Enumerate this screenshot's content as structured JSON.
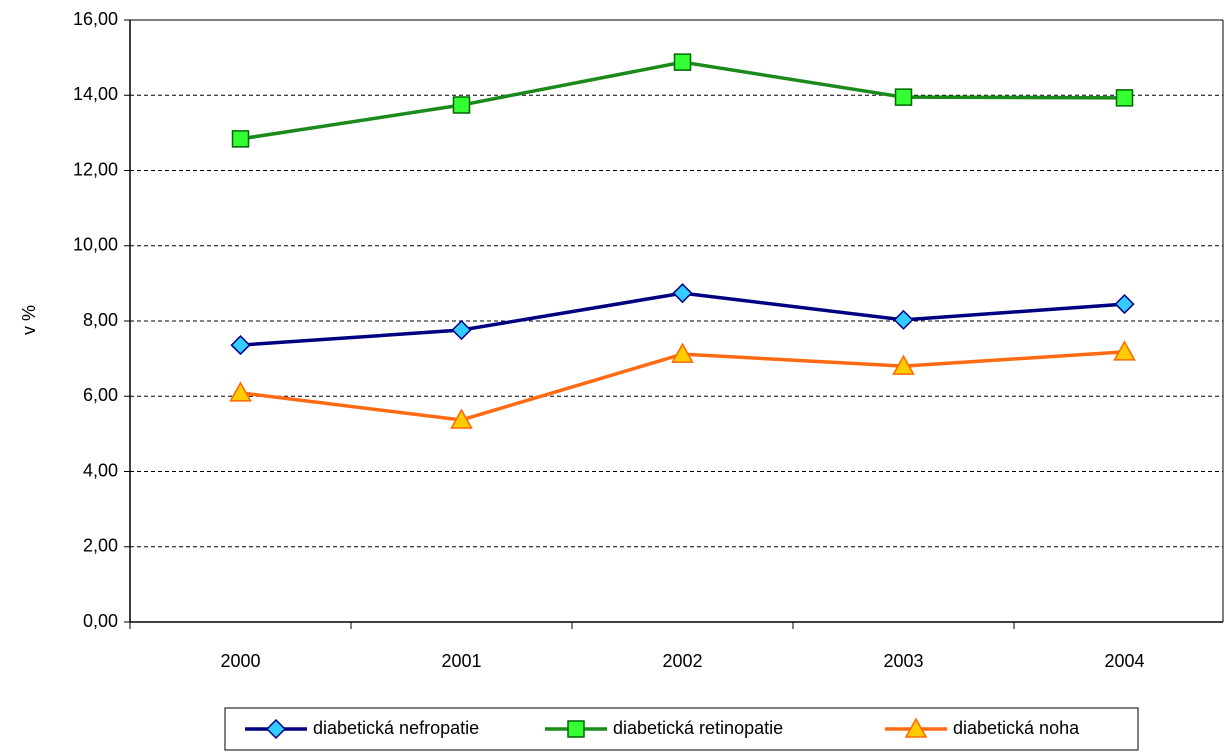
{
  "chart_data": {
    "type": "line",
    "y_label": "v %",
    "categories": [
      "2000",
      "2001",
      "2002",
      "2003",
      "2004"
    ],
    "series": [
      {
        "name": "diabetická nefropatie",
        "color": "#000080",
        "marker": "diamond",
        "marker_color": "#33ccff",
        "values": [
          7.36,
          7.76,
          8.74,
          8.03,
          8.45
        ]
      },
      {
        "name": "diabetická retinopatie",
        "color": "#1a8a1a",
        "marker": "square",
        "marker_color": "#33ff33",
        "values": [
          12.84,
          13.74,
          14.88,
          13.95,
          13.93
        ]
      },
      {
        "name": "diabetická noha",
        "color": "#ff6a13",
        "marker": "triangle",
        "marker_color": "#ffcc00",
        "values": [
          6.09,
          5.37,
          7.12,
          6.8,
          7.18
        ]
      }
    ],
    "ylim": [
      0,
      16
    ],
    "yticks": [
      {
        "value": 0,
        "label": "0,00"
      },
      {
        "value": 2,
        "label": "2,00"
      },
      {
        "value": 4,
        "label": "4,00"
      },
      {
        "value": 6,
        "label": "6,00"
      },
      {
        "value": 8,
        "label": "8,00"
      },
      {
        "value": 10,
        "label": "10,00"
      },
      {
        "value": 12,
        "label": "12,00"
      },
      {
        "value": 14,
        "label": "14,00"
      },
      {
        "value": 16,
        "label": "16,00"
      }
    ],
    "grid": true
  }
}
